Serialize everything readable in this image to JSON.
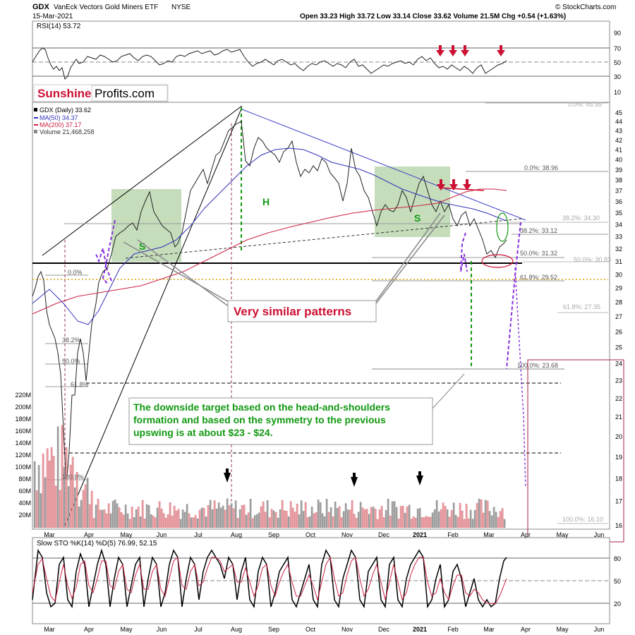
{
  "header": {
    "symbol": "GDX",
    "name": "VanEck Vectors Gold Miners ETF",
    "exchange": "NYSE",
    "date": "15-Mar-2021",
    "source": "© StockCharts.com",
    "ohlc": "Open 33.23   High 33.72   Low 33.14   Close 33.62   Volume 21.5M   Chg +0.54 (+1.63%)",
    "open": 33.23,
    "high": 33.72,
    "low": 33.14,
    "close": 33.62,
    "volume": "21.5M",
    "change": "+0.54 (+1.63%)"
  },
  "logo": {
    "part1": "Sunshine",
    "part2": "Profits.com"
  },
  "rsi": {
    "label": "RSI(14) 53.72",
    "ticks": [
      "90",
      "70",
      "50",
      "30",
      "10"
    ],
    "down_arrows": 4
  },
  "price_legend": {
    "line1": "GDX (Daily) 33.62",
    "line2": "MA(50) 34.37",
    "line3": "MA(200) 37.17",
    "line4": "Volume 21,468,258"
  },
  "annotations": {
    "H": "H",
    "S_left_1": "S",
    "S_right_1": "S",
    "similar": "Very similar patterns",
    "target_line1": "The downside target based on the head-and-shoulders",
    "target_line2": "formation and based on the symmetry to the previous",
    "target_line3": "upswing is at about $23 - $24."
  },
  "fib_labels": {
    "r_top": "0.0%: 45.55",
    "r_1": "0.0%: 38.96",
    "r_2": "38.2%: 34.30",
    "r_3": "38.2%: 33.12",
    "r_4": "50.0%: 31.32",
    "r_5": "50.0%: 30.83",
    "r_6": "61.8%: 29.52",
    "r_7": "61.8%: 27.35",
    "r_8": "100.0%: 23.68",
    "r_9": "100.0%: 16.10",
    "l_1": "0.0%",
    "l_2": "38.2%",
    "l_3": "50.0%",
    "l_4": "61.8%",
    "l_5": "100.0%"
  },
  "colors": {
    "price_up": "#000000",
    "price_down": "#cc0033",
    "ma50": "#3333bb",
    "ma200": "#cc2244",
    "green_box": "#5a9e3c",
    "arrow_red": "#cc1133",
    "target_text": "#119911",
    "fib_orange": "#e0a000"
  },
  "chart_data": {
    "type": "line",
    "title": "GDX VanEck Vectors Gold Miners ETF NYSE",
    "x_tick_labels": [
      "Mar",
      "Apr",
      "May",
      "Jun",
      "Jul",
      "Aug",
      "Sep",
      "Oct",
      "Nov",
      "Dec",
      "2021",
      "Feb",
      "Mar",
      "Apr",
      "May",
      "Jun"
    ],
    "price_ticks": [
      "45",
      "44",
      "43",
      "42",
      "41",
      "40",
      "39",
      "38",
      "37",
      "36",
      "35",
      "34",
      "33",
      "32",
      "31",
      "30",
      "29",
      "28",
      "27",
      "26",
      "25",
      "24",
      "23",
      "22",
      "21",
      "20",
      "19",
      "18",
      "17",
      "16"
    ],
    "volume_ticks": [
      "220M",
      "200M",
      "180M",
      "160M",
      "140M",
      "120M",
      "100M",
      "80M",
      "60M",
      "40M",
      "20M"
    ],
    "price_scale": "log",
    "series": [
      {
        "name": "GDX (Daily) 33.62",
        "x": [
          "2020-02-20",
          "2020-03-01",
          "2020-03-09",
          "2020-03-13",
          "2020-03-16",
          "2020-03-23",
          "2020-04-01",
          "2020-04-09",
          "2020-04-20",
          "2020-05-01",
          "2020-05-18",
          "2020-06-01",
          "2020-06-15",
          "2020-07-01",
          "2020-07-15",
          "2020-07-27",
          "2020-08-04",
          "2020-08-11",
          "2020-08-20",
          "2020-09-01",
          "2020-09-15",
          "2020-10-01",
          "2020-10-15",
          "2020-11-02",
          "2020-11-09",
          "2020-11-20",
          "2020-11-30",
          "2020-12-15",
          "2021-01-05",
          "2021-01-15",
          "2021-02-01",
          "2021-02-15",
          "2021-03-01",
          "2021-03-08",
          "2021-03-15"
        ],
        "values": [
          29.8,
          31.0,
          26.5,
          21.0,
          17.2,
          22.5,
          27.0,
          30.5,
          33.5,
          34.0,
          37.0,
          33.0,
          33.8,
          36.5,
          40.0,
          44.0,
          45.5,
          41.0,
          43.0,
          42.0,
          41.5,
          38.0,
          39.5,
          40.5,
          38.5,
          35.5,
          33.5,
          35.0,
          38.5,
          35.5,
          35.5,
          34.0,
          32.0,
          30.5,
          33.62
        ]
      },
      {
        "name": "MA(50) 34.37",
        "x": [
          "2020-04-20",
          "2020-05-20",
          "2020-06-20",
          "2020-07-20",
          "2020-08-20",
          "2020-09-20",
          "2020-10-20",
          "2020-11-20",
          "2020-12-20",
          "2021-01-20",
          "2021-02-20",
          "2021-03-15"
        ],
        "values": [
          28.5,
          31.5,
          33.5,
          36.5,
          40.0,
          41.5,
          40.5,
          39.0,
          37.0,
          36.5,
          35.5,
          34.37
        ]
      },
      {
        "name": "MA(200) 37.17",
        "x": [
          "2020-05-01",
          "2020-06-15",
          "2020-08-01",
          "2020-09-15",
          "2020-11-01",
          "2020-12-15",
          "2021-01-15",
          "2021-02-15",
          "2021-03-15"
        ],
        "values": [
          28.8,
          30.0,
          31.5,
          33.0,
          34.5,
          35.8,
          36.5,
          37.0,
          37.17
        ]
      }
    ],
    "fibonacci_right": [
      {
        "label": "0.0%",
        "value": 45.55
      },
      {
        "label": "0.0%",
        "value": 38.96
      },
      {
        "label": "38.2%",
        "value": 34.3
      },
      {
        "label": "38.2%",
        "value": 33.12
      },
      {
        "label": "50.0%",
        "value": 31.32
      },
      {
        "label": "50.0%",
        "value": 30.83
      },
      {
        "label": "61.8%",
        "value": 29.52
      },
      {
        "label": "61.8%",
        "value": 27.35
      },
      {
        "label": "100.0%",
        "value": 23.68
      },
      {
        "label": "100.0%",
        "value": 16.1
      }
    ],
    "rsi": {
      "label": "RSI(14) 53.72",
      "value": 53.72,
      "ylim": [
        10,
        90
      ]
    },
    "stochastic": {
      "label": "Slow STO %K(14) %D(5) 76.99, 52.15",
      "k": 76.99,
      "d": 52.15,
      "ticks": [
        "80",
        "50",
        "20"
      ]
    }
  }
}
